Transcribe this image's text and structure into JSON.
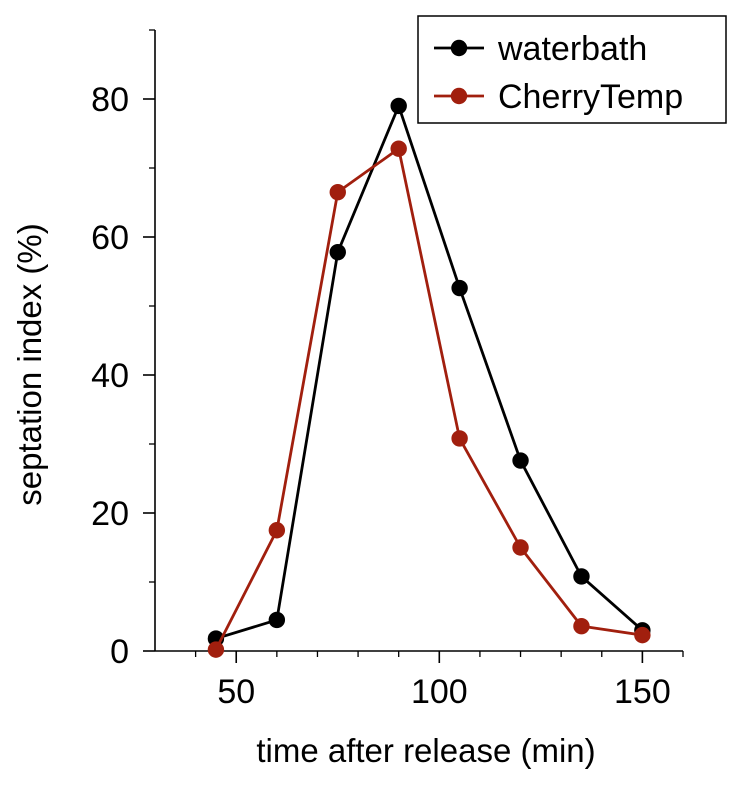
{
  "chart_data": {
    "type": "line",
    "title": "",
    "xlabel": "time after release (min)",
    "ylabel": "septation index (%)",
    "xlim": [
      30,
      160
    ],
    "ylim": [
      0,
      90
    ],
    "xticks": [
      50,
      100,
      150
    ],
    "xtick_labels": [
      "50",
      "100",
      "150"
    ],
    "xminor": [
      40,
      60,
      70,
      80,
      90,
      110,
      120,
      130,
      140,
      160
    ],
    "yticks": [
      0,
      20,
      40,
      60,
      80
    ],
    "ytick_labels": [
      "0",
      "20",
      "40",
      "60",
      "80"
    ],
    "yminor": [
      10,
      30,
      50,
      70,
      90
    ],
    "grid": false,
    "legend_position": "top-right",
    "series": [
      {
        "name": "waterbath",
        "color": "#000000",
        "x": [
          45,
          60,
          75,
          90,
          105,
          120,
          135,
          150
        ],
        "y": [
          1.8,
          4.5,
          57.8,
          79,
          52.6,
          27.6,
          10.8,
          3.0
        ]
      },
      {
        "name": "CherryTemp",
        "color": "#a11f0e",
        "x": [
          45,
          60,
          75,
          90,
          105,
          120,
          135,
          150
        ],
        "y": [
          0.2,
          17.5,
          66.5,
          72.8,
          30.8,
          15.0,
          3.6,
          2.3
        ]
      }
    ]
  }
}
